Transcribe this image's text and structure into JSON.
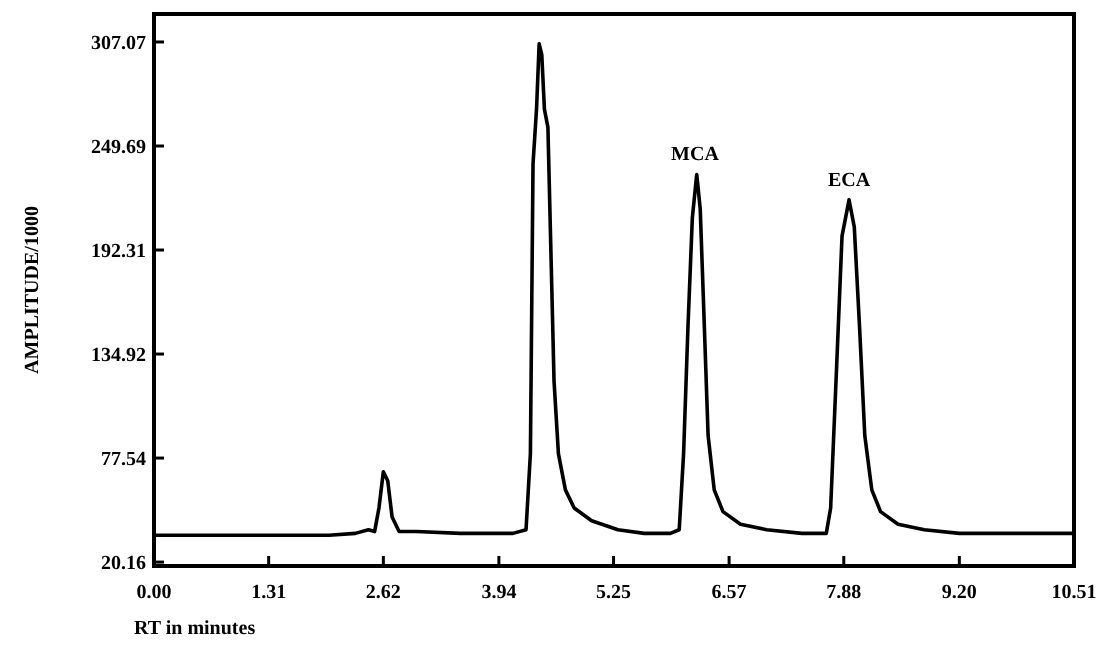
{
  "chart_data": {
    "type": "line",
    "xlabel": "RT in minutes",
    "ylabel": "AMPLITUDE/1000",
    "xlim": [
      0,
      10.51
    ],
    "ylim": [
      18,
      322.5
    ],
    "xticks": [
      {
        "value": 0,
        "label": "0.00"
      },
      1.31,
      2.62,
      3.94,
      5.25,
      6.57,
      7.88,
      {
        "value": 9.2,
        "label": "9.20"
      },
      10.51
    ],
    "yticks": [
      20.16,
      77.54,
      134.92,
      192.31,
      249.69,
      307.07
    ],
    "grid": false,
    "marker": "none",
    "line_style": "solid",
    "annotations": [
      {
        "text": "MCA",
        "x": 6.18,
        "y": 234
      },
      {
        "text": "ECA",
        "x": 7.94,
        "y": 220
      }
    ],
    "series": [
      {
        "color": "#000000",
        "x": [
          0,
          2.0,
          2.3,
          2.45,
          2.52,
          2.57,
          2.62,
          2.67,
          2.72,
          2.8,
          3.0,
          3.5,
          4.1,
          4.25,
          4.3,
          4.33,
          4.37,
          4.4,
          4.43,
          4.46,
          4.5,
          4.53,
          4.57,
          4.62,
          4.7,
          4.8,
          5.0,
          5.3,
          5.6,
          5.9,
          6.0,
          6.05,
          6.1,
          6.15,
          6.2,
          6.24,
          6.28,
          6.33,
          6.4,
          6.5,
          6.7,
          7.0,
          7.4,
          7.68,
          7.73,
          7.8,
          7.86,
          7.94,
          8.0,
          8.06,
          8.12,
          8.2,
          8.3,
          8.5,
          8.8,
          9.2,
          10.51
        ],
        "values": [
          35,
          35,
          36,
          38,
          37,
          50,
          70,
          65,
          45,
          37,
          37,
          36,
          36,
          38,
          80,
          240,
          270,
          306,
          300,
          270,
          260,
          200,
          120,
          80,
          60,
          50,
          43,
          38,
          36,
          36,
          38,
          80,
          150,
          210,
          234,
          215,
          160,
          90,
          60,
          48,
          41,
          38,
          36,
          36,
          50,
          130,
          200,
          220,
          205,
          150,
          90,
          60,
          48,
          41,
          38,
          36,
          36
        ]
      }
    ]
  }
}
